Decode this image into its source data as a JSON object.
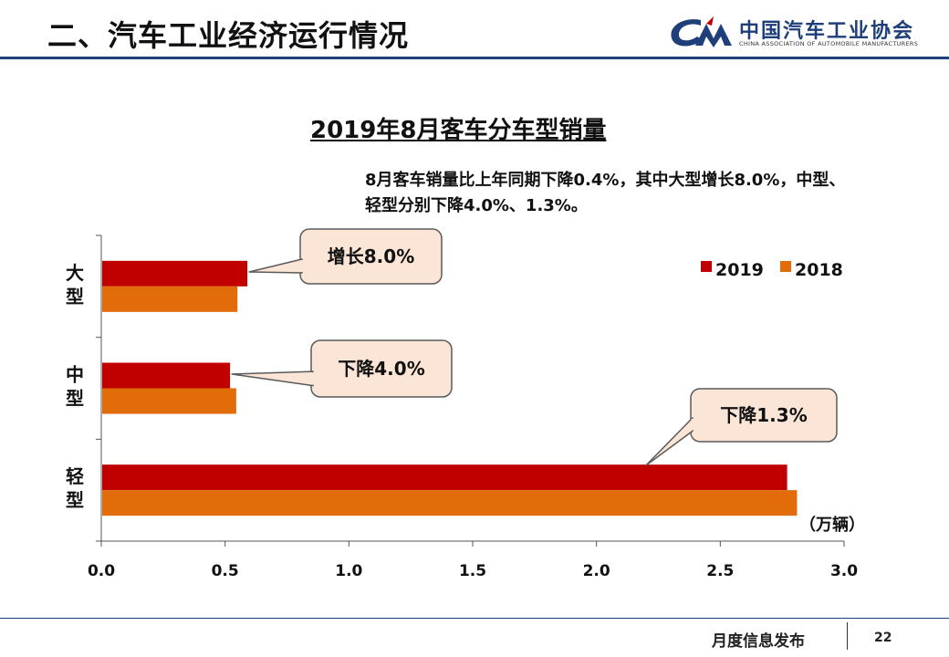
{
  "header": {
    "title": "二、汽车工业经济运行情况",
    "logo_cn": "中国汽车工业协会",
    "logo_en": "CHINA ASSOCIATION OF AUTOMOBILE MANUFACTURERS"
  },
  "chart_data": {
    "type": "bar",
    "orientation": "horizontal",
    "title": "2019年8月客车分车型销量",
    "note": "8月客车销量比上年同期下降0.4%，其中大型增长8.0%，中型、轻型分别下降4.0%、1.3%。",
    "categories": [
      "大型",
      "中型",
      "轻型"
    ],
    "series": [
      {
        "name": "2019",
        "color": "#c00000",
        "values": [
          0.59,
          0.52,
          2.77
        ]
      },
      {
        "name": "2018",
        "color": "#e26b0a",
        "values": [
          0.55,
          0.545,
          2.81
        ]
      }
    ],
    "xlim": [
      0,
      3.0
    ],
    "xticks": [
      "0.0",
      "0.5",
      "1.0",
      "1.5",
      "2.0",
      "2.5",
      "3.0"
    ],
    "unit_label": "（万辆）",
    "legend_position": "top-right",
    "grid": false,
    "callouts": [
      {
        "category": "大型",
        "text": "增长8.0%"
      },
      {
        "category": "中型",
        "text": "下降4.0%"
      },
      {
        "category": "轻型",
        "text": "下降1.3%"
      }
    ]
  },
  "footer": {
    "label": "月度信息发布",
    "page": "22"
  }
}
